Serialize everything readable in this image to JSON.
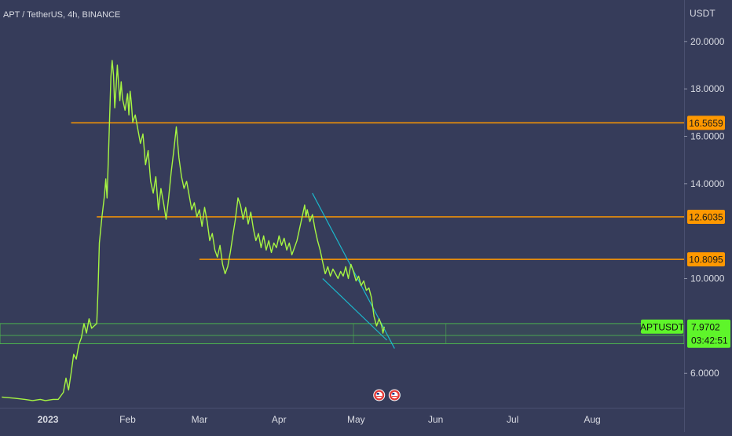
{
  "symbol_title": "APT / TetherUS, 4h, BINANCE",
  "currency_label": "USDT",
  "chart_data": {
    "type": "line",
    "y_ticks": [
      "20.0000",
      "18.0000",
      "16.0000",
      "14.0000",
      "10.0000",
      "6.0000"
    ],
    "y_tick_values": [
      20,
      18,
      16,
      14,
      10,
      6
    ],
    "x_ticks": [
      {
        "label": "2023",
        "day": 1,
        "bold": true
      },
      {
        "label": "Feb",
        "day": 32
      },
      {
        "label": "Mar",
        "day": 60
      },
      {
        "label": "Apr",
        "day": 91
      },
      {
        "label": "May",
        "day": 121
      },
      {
        "label": "Jun",
        "day": 152
      },
      {
        "label": "Jul",
        "day": 182
      },
      {
        "label": "Aug",
        "day": 213
      }
    ],
    "ylim": [
      4.55,
      21.75
    ],
    "xlim": [
      -17.7,
      248.8
    ],
    "price_series": [
      [
        -17,
        5.0
      ],
      [
        -12,
        4.95
      ],
      [
        -8,
        4.9
      ],
      [
        -5,
        4.85
      ],
      [
        -2,
        4.9
      ],
      [
        0,
        4.85
      ],
      [
        3,
        4.9
      ],
      [
        5,
        4.9
      ],
      [
        7,
        5.2
      ],
      [
        8,
        5.8
      ],
      [
        9,
        5.3
      ],
      [
        10,
        6.0
      ],
      [
        11,
        6.8
      ],
      [
        12,
        6.6
      ],
      [
        13,
        7.2
      ],
      [
        14,
        7.5
      ],
      [
        15,
        8.1
      ],
      [
        16,
        7.7
      ],
      [
        17,
        8.3
      ],
      [
        18,
        7.9
      ],
      [
        19,
        8.0
      ],
      [
        20,
        8.1
      ],
      [
        20.5,
        9.5
      ],
      [
        21,
        11.5
      ],
      [
        22,
        12.6
      ],
      [
        23,
        13.5
      ],
      [
        23.5,
        14.2
      ],
      [
        24,
        13.4
      ],
      [
        24.5,
        15.0
      ],
      [
        25,
        16.8
      ],
      [
        25.5,
        18.5
      ],
      [
        26,
        19.2
      ],
      [
        26.5,
        18.6
      ],
      [
        27,
        17.2
      ],
      [
        27.5,
        18.0
      ],
      [
        28,
        19.0
      ],
      [
        28.5,
        18.2
      ],
      [
        29,
        17.5
      ],
      [
        29.5,
        18.3
      ],
      [
        30,
        17.6
      ],
      [
        31,
        17.1
      ],
      [
        32,
        17.8
      ],
      [
        32.5,
        16.9
      ],
      [
        33,
        17.9
      ],
      [
        33.5,
        17.4
      ],
      [
        34,
        16.6
      ],
      [
        35,
        16.9
      ],
      [
        36,
        16.3
      ],
      [
        37,
        15.7
      ],
      [
        38,
        16.1
      ],
      [
        39,
        14.8
      ],
      [
        40,
        15.4
      ],
      [
        41,
        14.1
      ],
      [
        42,
        13.6
      ],
      [
        43,
        14.3
      ],
      [
        44,
        12.9
      ],
      [
        45,
        13.8
      ],
      [
        46,
        13.2
      ],
      [
        47,
        12.5
      ],
      [
        48,
        13.4
      ],
      [
        49,
        14.5
      ],
      [
        50,
        15.4
      ],
      [
        51,
        16.4
      ],
      [
        52,
        15.1
      ],
      [
        53,
        14.3
      ],
      [
        54,
        13.8
      ],
      [
        55,
        14.1
      ],
      [
        56,
        13.5
      ],
      [
        57,
        12.9
      ],
      [
        58,
        13.2
      ],
      [
        59,
        12.6
      ],
      [
        60,
        12.9
      ],
      [
        61,
        12.2
      ],
      [
        62,
        13.0
      ],
      [
        63,
        12.4
      ],
      [
        64,
        11.6
      ],
      [
        65,
        11.9
      ],
      [
        66,
        11.2
      ],
      [
        67,
        10.9
      ],
      [
        68,
        11.4
      ],
      [
        69,
        10.6
      ],
      [
        70,
        10.2
      ],
      [
        71,
        10.5
      ],
      [
        72,
        11.1
      ],
      [
        73,
        11.8
      ],
      [
        74,
        12.5
      ],
      [
        75,
        13.4
      ],
      [
        76,
        13.1
      ],
      [
        77,
        12.5
      ],
      [
        78,
        13.0
      ],
      [
        79,
        12.3
      ],
      [
        80,
        12.8
      ],
      [
        81,
        12.1
      ],
      [
        82,
        11.6
      ],
      [
        83,
        11.9
      ],
      [
        84,
        11.3
      ],
      [
        85,
        11.8
      ],
      [
        86,
        11.2
      ],
      [
        87,
        11.6
      ],
      [
        88,
        11.1
      ],
      [
        89,
        11.5
      ],
      [
        90,
        11.3
      ],
      [
        91,
        11.8
      ],
      [
        92,
        11.4
      ],
      [
        93,
        11.7
      ],
      [
        94,
        11.2
      ],
      [
        95,
        11.5
      ],
      [
        96,
        11.0
      ],
      [
        97,
        11.3
      ],
      [
        98,
        11.6
      ],
      [
        99,
        12.1
      ],
      [
        100,
        12.6
      ],
      [
        101,
        13.1
      ],
      [
        101.5,
        12.6
      ],
      [
        102,
        12.9
      ],
      [
        103,
        12.4
      ],
      [
        104,
        12.7
      ],
      [
        105,
        12.1
      ],
      [
        106,
        11.6
      ],
      [
        107,
        11.2
      ],
      [
        108,
        10.7
      ],
      [
        109,
        10.2
      ],
      [
        110,
        10.5
      ],
      [
        111,
        10.1
      ],
      [
        112,
        10.4
      ],
      [
        113,
        10.2
      ],
      [
        114,
        10.0
      ],
      [
        115,
        10.3
      ],
      [
        116,
        10.1
      ],
      [
        117,
        10.5
      ],
      [
        118,
        10.0
      ],
      [
        119,
        10.6
      ],
      [
        120,
        10.3
      ],
      [
        121,
        9.9
      ],
      [
        122,
        10.1
      ],
      [
        123,
        9.7
      ],
      [
        124,
        9.9
      ],
      [
        125,
        9.5
      ],
      [
        126,
        9.6
      ],
      [
        127,
        9.2
      ],
      [
        127.5,
        8.8
      ],
      [
        128,
        8.4
      ],
      [
        129,
        8.0
      ],
      [
        130,
        8.3
      ],
      [
        131,
        8.0
      ],
      [
        131.5,
        7.7
      ],
      [
        132,
        7.97
      ]
    ],
    "horizontal_levels": [
      {
        "value": 16.5659,
        "label": "16.5659",
        "from_day": 10
      },
      {
        "value": 12.6035,
        "label": "12.6035",
        "from_day": 20
      },
      {
        "value": 10.8095,
        "label": "10.8095",
        "from_day": 60
      }
    ],
    "support_zone": {
      "top": 8.1,
      "bottom": 7.25,
      "mid": 7.6,
      "dividers_day": [
        120,
        156
      ]
    },
    "wedge_upper": [
      [
        104,
        13.6
      ],
      [
        136,
        7.05
      ]
    ],
    "wedge_lower": [
      [
        108,
        10.0
      ],
      [
        133,
        7.4
      ]
    ],
    "event_icons_day": [
      130,
      136
    ],
    "current": {
      "symbol": "APTUSDT",
      "price": "7.9702",
      "countdown": "03:42:51",
      "value": 7.9702
    },
    "colors": {
      "background": "#363c5a",
      "price": "#a6f542",
      "level": "#ff9800",
      "wedge": "#1bb8cc",
      "zone": "#4caf50",
      "badge": "#5ef52a",
      "text": "#d9dbe3"
    }
  }
}
